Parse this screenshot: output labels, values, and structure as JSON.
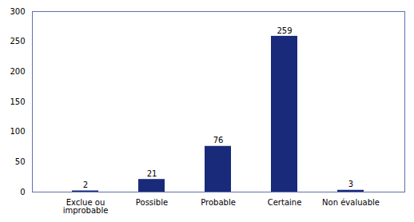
{
  "chart_data": {
    "type": "bar",
    "categories": [
      "Exclue ou\nimprobable",
      "Possible",
      "Probable",
      "Certaine",
      "Non évaluable"
    ],
    "values": [
      2,
      21,
      76,
      259,
      3
    ],
    "color": "#1a2a7a",
    "ylim": [
      0,
      300
    ],
    "yticks": [
      0,
      50,
      100,
      150,
      200,
      250,
      300
    ],
    "grid": false,
    "data_labels": true
  }
}
